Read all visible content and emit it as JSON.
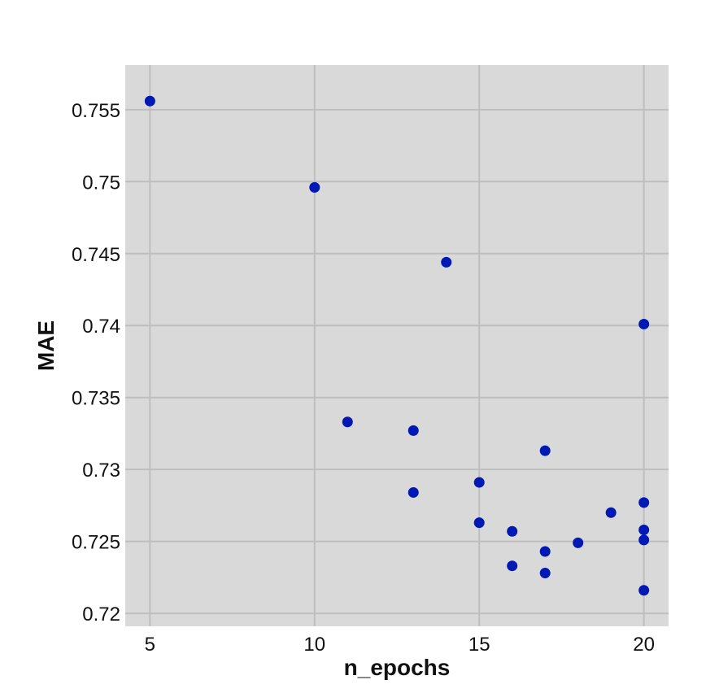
{
  "chart_data": {
    "type": "scatter",
    "title": "",
    "xlabel": "n_epochs",
    "ylabel": "MAE",
    "xlim": [
      4.25,
      20.75
    ],
    "ylim": [
      0.7191,
      0.7581
    ],
    "xticks": [
      5,
      10,
      15,
      20
    ],
    "xtick_labels": [
      "5",
      "10",
      "15",
      "20"
    ],
    "yticks": [
      0.72,
      0.725,
      0.73,
      0.735,
      0.74,
      0.745,
      0.75,
      0.755
    ],
    "ytick_labels": [
      "0.72",
      "0.725",
      "0.73",
      "0.735",
      "0.74",
      "0.745",
      "0.75",
      "0.755"
    ],
    "grid": true,
    "series": [
      {
        "x": [
          5,
          10,
          14,
          20,
          11,
          13,
          17,
          15,
          13,
          20,
          19,
          15,
          16,
          20,
          20,
          18,
          17,
          16,
          17,
          20
        ],
        "y": [
          0.7556,
          0.7496,
          0.7444,
          0.7401,
          0.7333,
          0.7327,
          0.7313,
          0.7291,
          0.7284,
          0.7277,
          0.727,
          0.7263,
          0.7257,
          0.7258,
          0.7251,
          0.7249,
          0.7243,
          0.7233,
          0.7228,
          0.7216
        ]
      }
    ],
    "colors": {
      "point": "#0019b4",
      "plot_background": "#d9d9d9",
      "grid": "#bebebe"
    }
  }
}
